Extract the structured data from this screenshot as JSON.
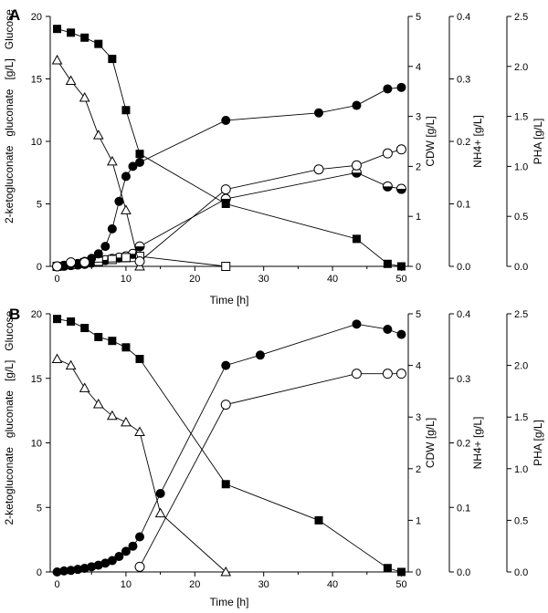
{
  "chart_data": [
    {
      "type": "line",
      "panel": "A",
      "xlabel": "Time [h]",
      "xlim": [
        -1,
        51
      ],
      "x_ticks": [
        0,
        10,
        20,
        30,
        40,
        50
      ],
      "axes": {
        "left": {
          "ylim": [
            0,
            20
          ],
          "ticks": [
            0,
            5,
            10,
            15,
            20
          ]
        },
        "cdw": {
          "label": "CDW  [g/L]",
          "ylim": [
            0,
            5
          ],
          "ticks": [
            0,
            1,
            2,
            3,
            4,
            5
          ]
        },
        "nh4": {
          "label": "NH4+ [g/L]",
          "ylim": [
            0,
            0.4
          ],
          "ticks": [
            "0.0",
            "0.1",
            "0.2",
            "0.3",
            "0.4"
          ]
        },
        "pha": {
          "label": "PHA [g/L]",
          "ylim": [
            0,
            2.5
          ],
          "ticks": [
            "0.0",
            "0.5",
            "1.0",
            "1.5",
            "2.0",
            "2.5"
          ]
        }
      },
      "left_label_parts": [
        "2-ketogluconate",
        "gluconate",
        "[g/L]",
        "Glucose"
      ],
      "series": [
        {
          "name": "Glucose",
          "axis": "left",
          "marker": "filled-square",
          "x": [
            0,
            2,
            4,
            6,
            8,
            10,
            12,
            24.5,
            43.5,
            48,
            50
          ],
          "y": [
            19.0,
            18.7,
            18.3,
            17.8,
            16.6,
            12.5,
            9.0,
            5.0,
            2.2,
            0.2,
            0.0
          ]
        },
        {
          "name": "gluconate",
          "axis": "left",
          "marker": "half-circle",
          "x": [
            0,
            1,
            2,
            3,
            4,
            5,
            6,
            7,
            8,
            9,
            10,
            11,
            12,
            24.5,
            43.5,
            48,
            50
          ],
          "y": [
            0.0,
            0.05,
            0.1,
            0.15,
            0.2,
            0.3,
            0.4,
            0.5,
            0.6,
            0.7,
            0.8,
            1.0,
            1.6,
            5.4,
            7.5,
            6.4,
            6.2
          ]
        },
        {
          "name": "2-ketogluconate",
          "axis": "left",
          "marker": "open-square",
          "x": [
            0,
            2,
            4,
            6,
            8,
            10,
            12,
            24.5
          ],
          "y": [
            0.0,
            0.15,
            0.3,
            0.4,
            0.55,
            0.7,
            0.8,
            0.0
          ]
        },
        {
          "name": "CDW",
          "axis": "cdw",
          "marker": "filled-circle",
          "x": [
            0,
            1,
            2,
            3,
            4,
            5,
            6,
            7,
            8,
            9,
            10,
            11,
            12,
            24.5,
            38,
            43.5,
            48,
            50
          ],
          "y": [
            0.0,
            0.02,
            0.04,
            0.06,
            0.1,
            0.16,
            0.25,
            0.4,
            0.75,
            1.3,
            1.8,
            2.0,
            2.08,
            2.92,
            3.07,
            3.22,
            3.55,
            3.58
          ]
        },
        {
          "name": "NH4+",
          "axis": "nh4",
          "marker": "open-triangle",
          "x": [
            0,
            2,
            4,
            6,
            8,
            10,
            12
          ],
          "y": [
            0.33,
            0.297,
            0.27,
            0.21,
            0.168,
            0.09,
            0.0
          ]
        },
        {
          "name": "PHA",
          "axis": "pha",
          "marker": "open-circle",
          "x": [
            0,
            2,
            4,
            12,
            24.5,
            38,
            43.5,
            48,
            50
          ],
          "y": [
            0.0,
            0.04,
            0.04,
            0.05,
            0.77,
            0.97,
            1.01,
            1.13,
            1.17
          ]
        }
      ]
    },
    {
      "type": "line",
      "panel": "B",
      "xlabel": "Time [h]",
      "xlim": [
        -1,
        51
      ],
      "x_ticks": [
        0,
        10,
        20,
        30,
        40,
        50
      ],
      "axes": {
        "left": {
          "ylim": [
            0,
            20
          ],
          "ticks": [
            0,
            5,
            10,
            15,
            20
          ]
        },
        "cdw": {
          "label": "CDW  [g/L]",
          "ylim": [
            0,
            5
          ],
          "ticks": [
            0,
            1,
            2,
            3,
            4,
            5
          ]
        },
        "nh4": {
          "label": "NH4+ [g/L]",
          "ylim": [
            0,
            0.4
          ],
          "ticks": [
            "0.0",
            "0.1",
            "0.2",
            "0.3",
            "0.4"
          ]
        },
        "pha": {
          "label": "PHA [g/L]",
          "ylim": [
            0,
            2.5
          ],
          "ticks": [
            "0.0",
            "0.5",
            "1.0",
            "1.5",
            "2.0",
            "2.5"
          ]
        }
      },
      "left_label_parts": [
        "2-ketogluconate",
        "gluconate",
        "[g/L]",
        "Glucose"
      ],
      "series": [
        {
          "name": "Glucose",
          "axis": "left",
          "marker": "filled-square",
          "x": [
            0,
            2,
            4,
            6,
            8,
            10,
            12,
            24.5,
            38,
            48,
            50
          ],
          "y": [
            19.6,
            19.4,
            18.9,
            18.2,
            17.9,
            17.4,
            16.5,
            6.8,
            4.0,
            0.3,
            0.0
          ]
        },
        {
          "name": "CDW",
          "axis": "cdw",
          "marker": "filled-circle",
          "x": [
            0,
            1,
            2,
            3,
            4,
            5,
            6,
            7,
            8,
            9,
            10,
            11,
            12,
            15,
            24.5,
            29.5,
            43.5,
            48,
            50
          ],
          "y": [
            0.0,
            0.02,
            0.03,
            0.05,
            0.07,
            0.1,
            0.13,
            0.17,
            0.22,
            0.3,
            0.4,
            0.5,
            0.68,
            1.52,
            4.0,
            4.2,
            4.8,
            4.7,
            4.6
          ]
        },
        {
          "name": "NH4+",
          "axis": "nh4",
          "marker": "open-triangle",
          "x": [
            0,
            2,
            4,
            6,
            8,
            10,
            12,
            15,
            24.5
          ],
          "y": [
            0.33,
            0.32,
            0.285,
            0.26,
            0.242,
            0.232,
            0.217,
            0.091,
            0.0
          ]
        },
        {
          "name": "PHA",
          "axis": "pha",
          "marker": "open-circle",
          "x": [
            12,
            24.5,
            43.5,
            48,
            50
          ],
          "y": [
            0.05,
            1.62,
            1.92,
            1.92,
            1.92
          ]
        }
      ]
    }
  ]
}
